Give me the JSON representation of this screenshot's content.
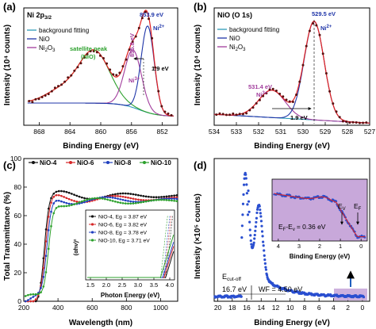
{
  "chart_data": [
    {
      "id": "a",
      "panel_label": "(a)",
      "type": "line",
      "title": "Ni 2p3/2",
      "xlabel": "Binding Energy (eV)",
      "ylabel": "Intensity (10⁴ counts)",
      "xlim": [
        870,
        850
      ],
      "x_ticks": [
        868,
        864,
        860,
        856,
        852
      ],
      "reversed_x": true,
      "grid": false,
      "legend": [
        "background fitting",
        "NiO",
        "Ni2O3"
      ],
      "legend_position": "top-left",
      "annotations": [
        "853.9 eV",
        "Ni2+",
        "855.8 eV",
        "Ni3+",
        "1.9 eV",
        "satellite peak",
        "(NiO)"
      ],
      "series": [
        {
          "name": "background fitting",
          "color": "#2e9bb8"
        },
        {
          "name": "NiO",
          "color": "#1f35a8"
        },
        {
          "name": "Ni2O3",
          "color": "#a13c9c"
        },
        {
          "name": "satellite peak (NiO)",
          "color": "#2ca02c"
        }
      ],
      "peaks": [
        {
          "label": "Ni2+",
          "x": 853.9
        },
        {
          "label": "Ni3+",
          "x": 855.8
        },
        {
          "label": "satellite",
          "x": 860.8
        }
      ]
    },
    {
      "id": "b",
      "panel_label": "(b)",
      "type": "line",
      "title": "NiO (O 1s)",
      "xlabel": "Binding Energy (eV)",
      "ylabel": "Intensity (10⁴ counts)",
      "xlim": [
        534,
        527
      ],
      "x_ticks": [
        534,
        533,
        532,
        531,
        530,
        529,
        528,
        527
      ],
      "reversed_x": true,
      "grid": false,
      "legend": [
        "background fitting",
        "NiO",
        "Ni2O3"
      ],
      "legend_position": "top-left",
      "annotations": [
        "529.5 eV",
        "Ni2+",
        "531.4 eV",
        "Ni3+",
        "1.9 eV"
      ],
      "series": [
        {
          "name": "background fitting",
          "color": "#2e9bb8"
        },
        {
          "name": "NiO",
          "color": "#1f35a8"
        },
        {
          "name": "Ni2O3",
          "color": "#a13c9c"
        }
      ],
      "peaks": [
        {
          "label": "Ni2+",
          "x": 529.5
        },
        {
          "label": "Ni3+",
          "x": 531.4
        }
      ]
    },
    {
      "id": "c",
      "panel_label": "(c)",
      "type": "line",
      "xlabel": "Wavelength (nm)",
      "ylabel": "Total Transmittance (%)",
      "xlim": [
        200,
        1100
      ],
      "ylim": [
        0,
        100
      ],
      "x_ticks": [
        200,
        400,
        600,
        800,
        1000
      ],
      "y_ticks": [
        0,
        20,
        40,
        60,
        80,
        100
      ],
      "legend_position": "top",
      "series": [
        {
          "name": "NiO-4",
          "color": "#111111"
        },
        {
          "name": "NiO-6",
          "color": "#d62728"
        },
        {
          "name": "NiO-8",
          "color": "#1f3fbf"
        },
        {
          "name": "NiO-10",
          "color": "#2ca02c"
        }
      ],
      "inset": {
        "xlabel": "Photon Energy (eV)",
        "ylabel": "(αhν)²",
        "x_ticks": [
          1.5,
          2.0,
          2.5,
          3.0,
          3.5,
          4.0
        ],
        "entries": [
          {
            "name": "NiO-4",
            "gap": "Eg = 3.87 eV",
            "eg": 3.87
          },
          {
            "name": "NiO-6",
            "gap": "Eg = 3.82 eV",
            "eg": 3.82
          },
          {
            "name": "NiO-8",
            "gap": "Eg = 3.78 eV",
            "eg": 3.78
          },
          {
            "name": "NiO-10",
            "gap": "Eg = 3.71 eV",
            "eg": 3.71
          }
        ]
      }
    },
    {
      "id": "d",
      "panel_label": "(d)",
      "type": "scatter",
      "xlabel": "Binding Energy (eV)",
      "ylabel": "Intensity (×10⁵ counts)",
      "xlim": [
        20.5,
        -1
      ],
      "x_ticks": [
        20,
        18,
        16,
        14,
        12,
        10,
        8,
        6,
        4,
        2,
        0
      ],
      "reversed_x": true,
      "annotations": [
        "E",
        "cut-off",
        "16.7 eV",
        "WF = 4.50 eV"
      ],
      "cutoff": 16.7,
      "work_function": "WF = 4.50 eV",
      "inset": {
        "xlabel": "Binding Energy (eV)",
        "x_ticks": [
          4,
          3,
          2,
          1,
          0
        ],
        "label_text": "E",
        "label_sub": "F",
        "label_mid": "-E",
        "label_sub2": "v",
        "label_value": "= 0.36 eV",
        "ev_label": "E",
        "ev_sub": "V",
        "ef_label": "E",
        "ef_sub": "F",
        "ev": 0.36,
        "ef": 0
      }
    }
  ]
}
